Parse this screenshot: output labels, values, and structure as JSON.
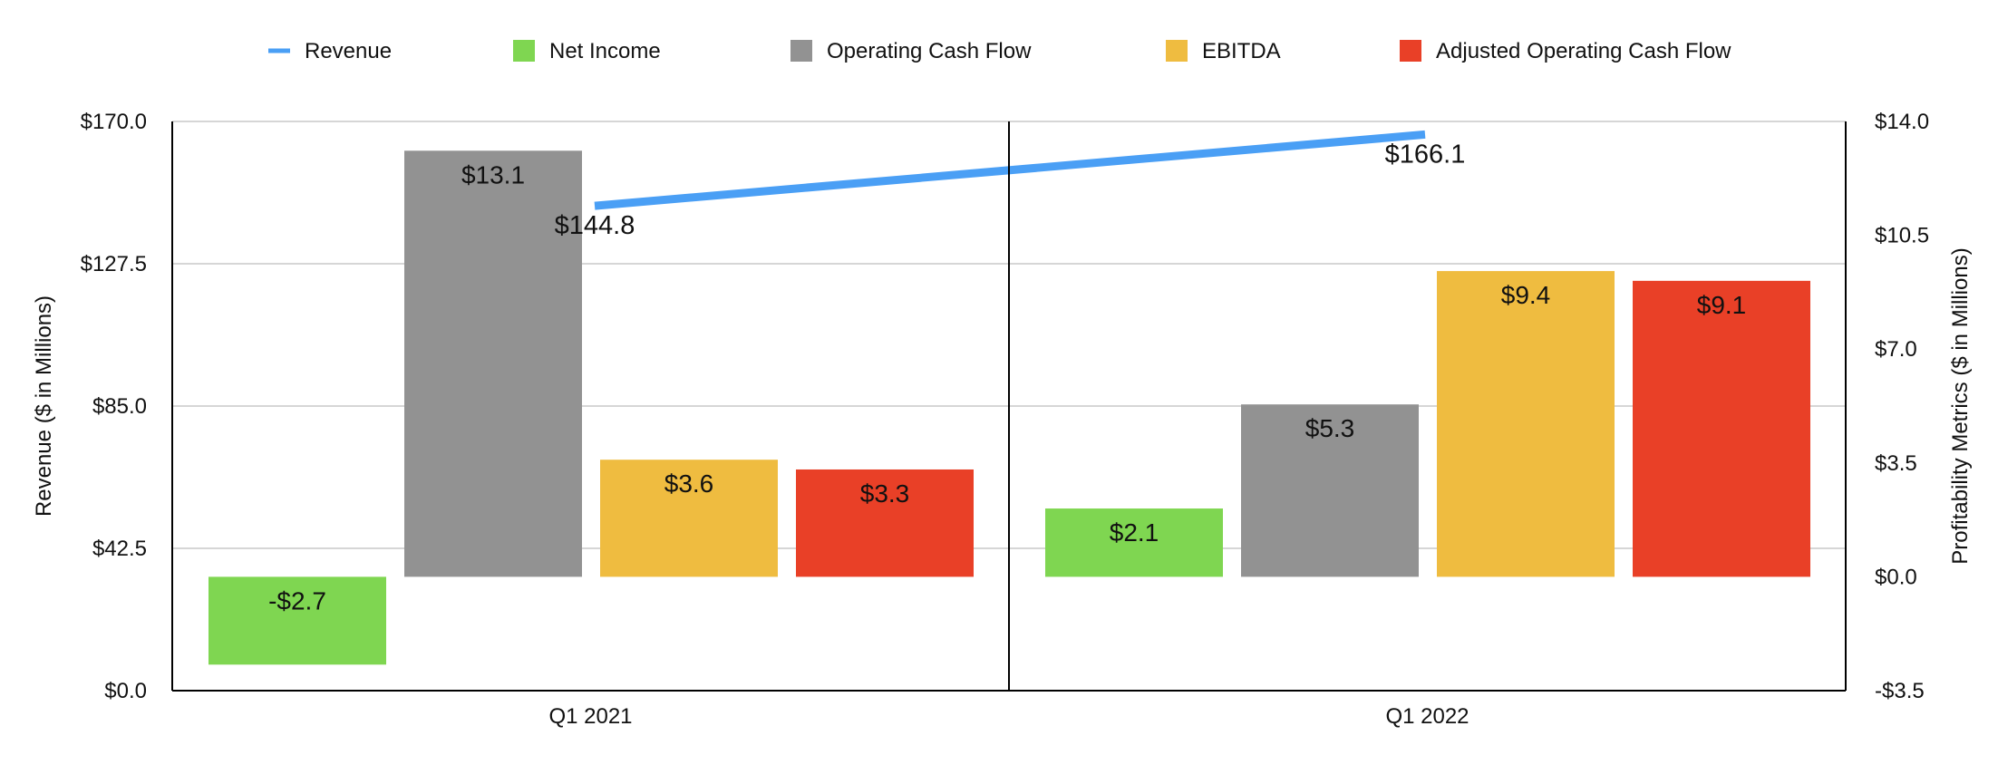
{
  "chart_data": {
    "type": "bar",
    "categories": [
      "Q1 2021",
      "Q1 2022"
    ],
    "legend_position": "top",
    "grid": true,
    "y_left": {
      "label": "Revenue ($ in Millions)",
      "ylim": [
        0,
        170
      ],
      "ticks": [
        0,
        42.5,
        85,
        127.5,
        170
      ],
      "tick_labels": [
        "$0.0",
        "$42.5",
        "$85.0",
        "$127.5",
        "$170.0"
      ]
    },
    "y_right": {
      "label": "Profitability Metrics ($ in Millions)",
      "ylim": [
        -3.5,
        14
      ],
      "ticks": [
        -3.5,
        0,
        3.5,
        7,
        10.5,
        14
      ],
      "tick_labels": [
        "-$3.5",
        "$0.0",
        "$3.5",
        "$7.0",
        "$10.5",
        "$14.0"
      ]
    },
    "line_series": {
      "name": "Revenue",
      "axis": "left",
      "color": "#4a9ff5",
      "values": [
        144.8,
        166.1
      ],
      "labels": [
        "$144.8",
        "$166.1"
      ]
    },
    "series": [
      {
        "name": "Net Income",
        "axis": "right",
        "color": "#7fd651",
        "values": [
          -2.7,
          2.1
        ],
        "labels": [
          "-$2.7",
          "$2.1"
        ]
      },
      {
        "name": "Operating Cash Flow",
        "axis": "right",
        "color": "#929292",
        "values": [
          13.1,
          5.3
        ],
        "labels": [
          "$13.1",
          "$5.3"
        ]
      },
      {
        "name": "EBITDA",
        "axis": "right",
        "color": "#efbc40",
        "values": [
          3.6,
          9.4
        ],
        "labels": [
          "$3.6",
          "$9.4"
        ]
      },
      {
        "name": "Adjusted Operating Cash Flow",
        "axis": "right",
        "color": "#e94027",
        "values": [
          3.3,
          9.1
        ],
        "labels": [
          "$3.3",
          "$9.1"
        ]
      }
    ]
  }
}
